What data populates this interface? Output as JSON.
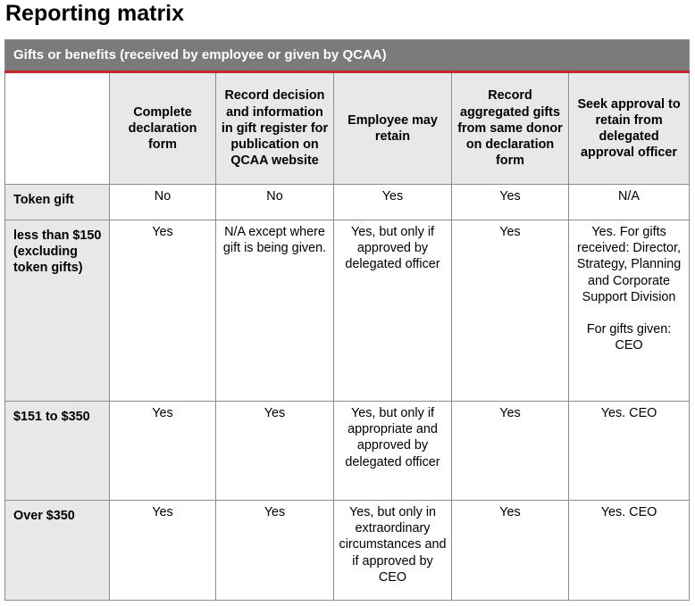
{
  "page_title": "Reporting matrix",
  "table": {
    "caption": "Gifts or benefits (received by employee or given by QCAA)",
    "columns": [
      "Complete declaration form",
      "Record decision and information in gift register for publication on QCAA website",
      "Employee may retain",
      "Record aggregated gifts from same donor on declaration form",
      "Seek approval to retain from delegated approval officer"
    ],
    "rows": [
      {
        "label": "Token gift",
        "cells": [
          "No",
          "No",
          "Yes",
          "Yes",
          "N/A"
        ]
      },
      {
        "label": "less than $150 (excluding token gifts)",
        "cells": [
          "Yes",
          "N/A except where gift is being given.",
          "Yes, but only if approved by delegated officer",
          "Yes",
          "Yes. For gifts received: Director, Strategy, Planning and Corporate Support Division"
        ],
        "extra": "For gifts given: CEO"
      },
      {
        "label": "$151 to $350",
        "cells": [
          "Yes",
          "Yes",
          "Yes, but only if appropriate and approved by delegated officer",
          "Yes",
          "Yes. CEO"
        ]
      },
      {
        "label": "Over $350",
        "cells": [
          "Yes",
          "Yes",
          "Yes, but only in extraordinary circumstances and if approved by CEO",
          "Yes",
          "Yes. CEO"
        ]
      }
    ]
  }
}
